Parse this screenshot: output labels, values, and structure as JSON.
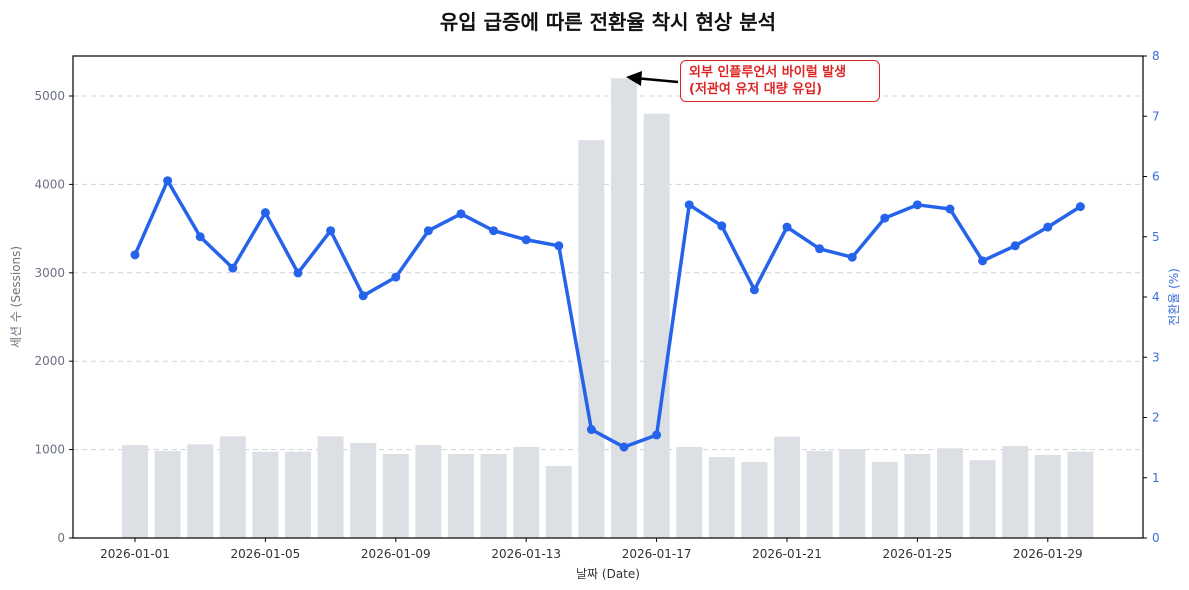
{
  "chart_data": {
    "type": "bar+line",
    "title": "유입 급증에 따른 전환율 착시 현상 분석",
    "xlabel": "날짜 (Date)",
    "ylabel_left": "세션 수 (Sessions)",
    "ylabel_right": "전환율 (%)",
    "ylim_left": [
      0,
      5450
    ],
    "ylim_right": [
      0,
      8
    ],
    "yticks_left": [
      0,
      1000,
      2000,
      3000,
      4000,
      5000
    ],
    "yticks_right": [
      0,
      1,
      2,
      3,
      4,
      5,
      6,
      7,
      8
    ],
    "xticks": [
      "2026-01-01",
      "2026-01-05",
      "2026-01-09",
      "2026-01-13",
      "2026-01-17",
      "2026-01-21",
      "2026-01-25",
      "2026-01-29"
    ],
    "grid": "horizontal dashed",
    "categories": [
      "2026-01-01",
      "2026-01-02",
      "2026-01-03",
      "2026-01-04",
      "2026-01-05",
      "2026-01-06",
      "2026-01-07",
      "2026-01-08",
      "2026-01-09",
      "2026-01-10",
      "2026-01-11",
      "2026-01-12",
      "2026-01-13",
      "2026-01-14",
      "2026-01-15",
      "2026-01-16",
      "2026-01-17",
      "2026-01-18",
      "2026-01-19",
      "2026-01-20",
      "2026-01-21",
      "2026-01-22",
      "2026-01-23",
      "2026-01-24",
      "2026-01-25",
      "2026-01-26",
      "2026-01-27",
      "2026-01-28",
      "2026-01-29",
      "2026-01-30"
    ],
    "series": [
      {
        "name": "세션 수 (Sessions)",
        "type": "bar",
        "axis": "left",
        "color": "#dcdfe4",
        "values": [
          1050,
          985,
          1060,
          1150,
          975,
          975,
          1150,
          1075,
          950,
          1050,
          950,
          950,
          1030,
          815,
          4500,
          5200,
          4800,
          1030,
          915,
          860,
          1145,
          985,
          1005,
          860,
          950,
          1015,
          880,
          1040,
          940,
          975
        ]
      },
      {
        "name": "전환율 (%)",
        "type": "line",
        "axis": "right",
        "color": "#2563eb",
        "values": [
          4.7,
          5.93,
          5.0,
          4.48,
          5.4,
          4.4,
          5.1,
          4.02,
          4.33,
          5.1,
          5.38,
          5.1,
          4.95,
          4.85,
          1.8,
          1.51,
          1.71,
          5.53,
          5.18,
          4.12,
          5.16,
          4.8,
          4.66,
          5.31,
          5.53,
          5.46,
          4.6,
          4.85,
          5.16,
          5.5
        ]
      }
    ],
    "annotation": {
      "text_line1": "외부 인플루언서 바이럴 발생",
      "text_line2": "(저관여 유저 대량 유입)",
      "target": "2026-01-16",
      "color": "#dc2626"
    }
  }
}
